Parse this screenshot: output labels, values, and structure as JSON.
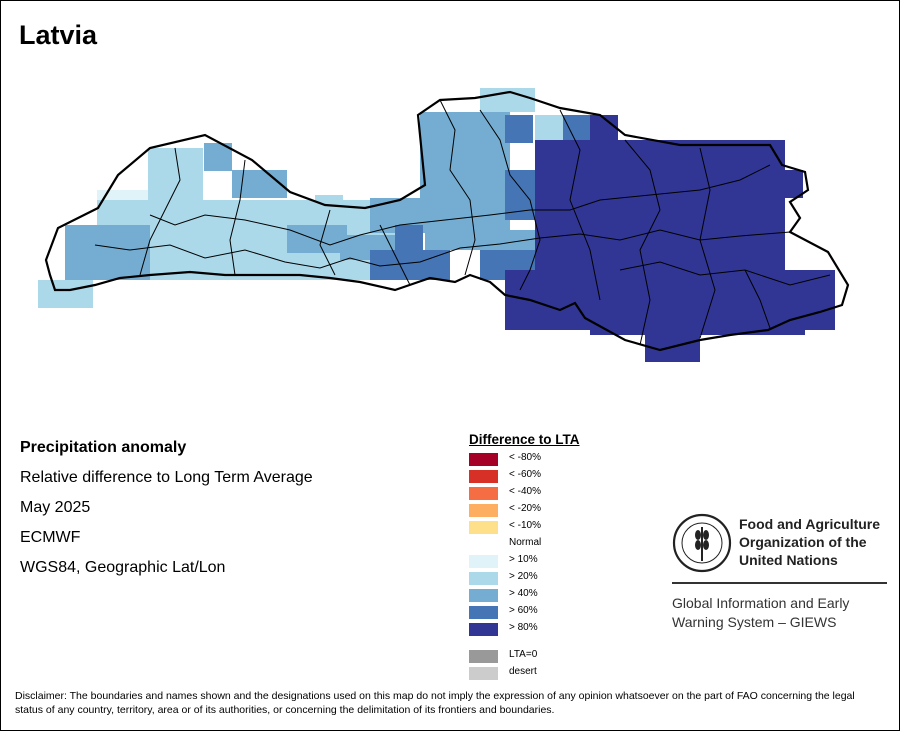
{
  "title": "Latvia",
  "info": {
    "heading": "Precipitation anomaly",
    "subheading": "Relative difference to Long Term Average",
    "period": "May 2025",
    "source": "ECMWF",
    "projection": "WGS84, Geographic Lat/Lon"
  },
  "legend": {
    "title": "Difference to LTA",
    "items": [
      {
        "label": "< -80%",
        "color": "#a50026"
      },
      {
        "label": "< -60%",
        "color": "#d73027"
      },
      {
        "label": "< -40%",
        "color": "#f46d43"
      },
      {
        "label": "< -20%",
        "color": "#fdae61"
      },
      {
        "label": "< -10%",
        "color": "#fee08b"
      },
      {
        "label": "Normal",
        "color": ""
      },
      {
        "label": "> 10%",
        "color": "#e0f3f8"
      },
      {
        "label": "> 20%",
        "color": "#abd9e9"
      },
      {
        "label": "> 40%",
        "color": "#74add1"
      },
      {
        "label": "> 60%",
        "color": "#4575b4"
      },
      {
        "label": "> 80%",
        "color": "#313695"
      },
      {
        "label": "",
        "color": ""
      },
      {
        "label": "LTA=0",
        "color": "#999999"
      },
      {
        "label": "desert",
        "color": "#cccccc"
      }
    ]
  },
  "logo": {
    "org_line1": "Food and Agriculture",
    "org_line2": "Organization of the",
    "org_line3": "United Nations",
    "emblem_text": "FAO",
    "emblem_motto": "FIAT PANIS",
    "system_line1": "Global Information and Early",
    "system_line2": "Warning System – GIEWS"
  },
  "disclaimer": "Disclaimer: The boundaries and names shown and the designations used on this map do not imply the expression of any opinion whatsoever on the part of FAO concerning the legal status of any country, territory, area or of its authorities, or concerning the delimitation of its frontiers and boundaries."
}
